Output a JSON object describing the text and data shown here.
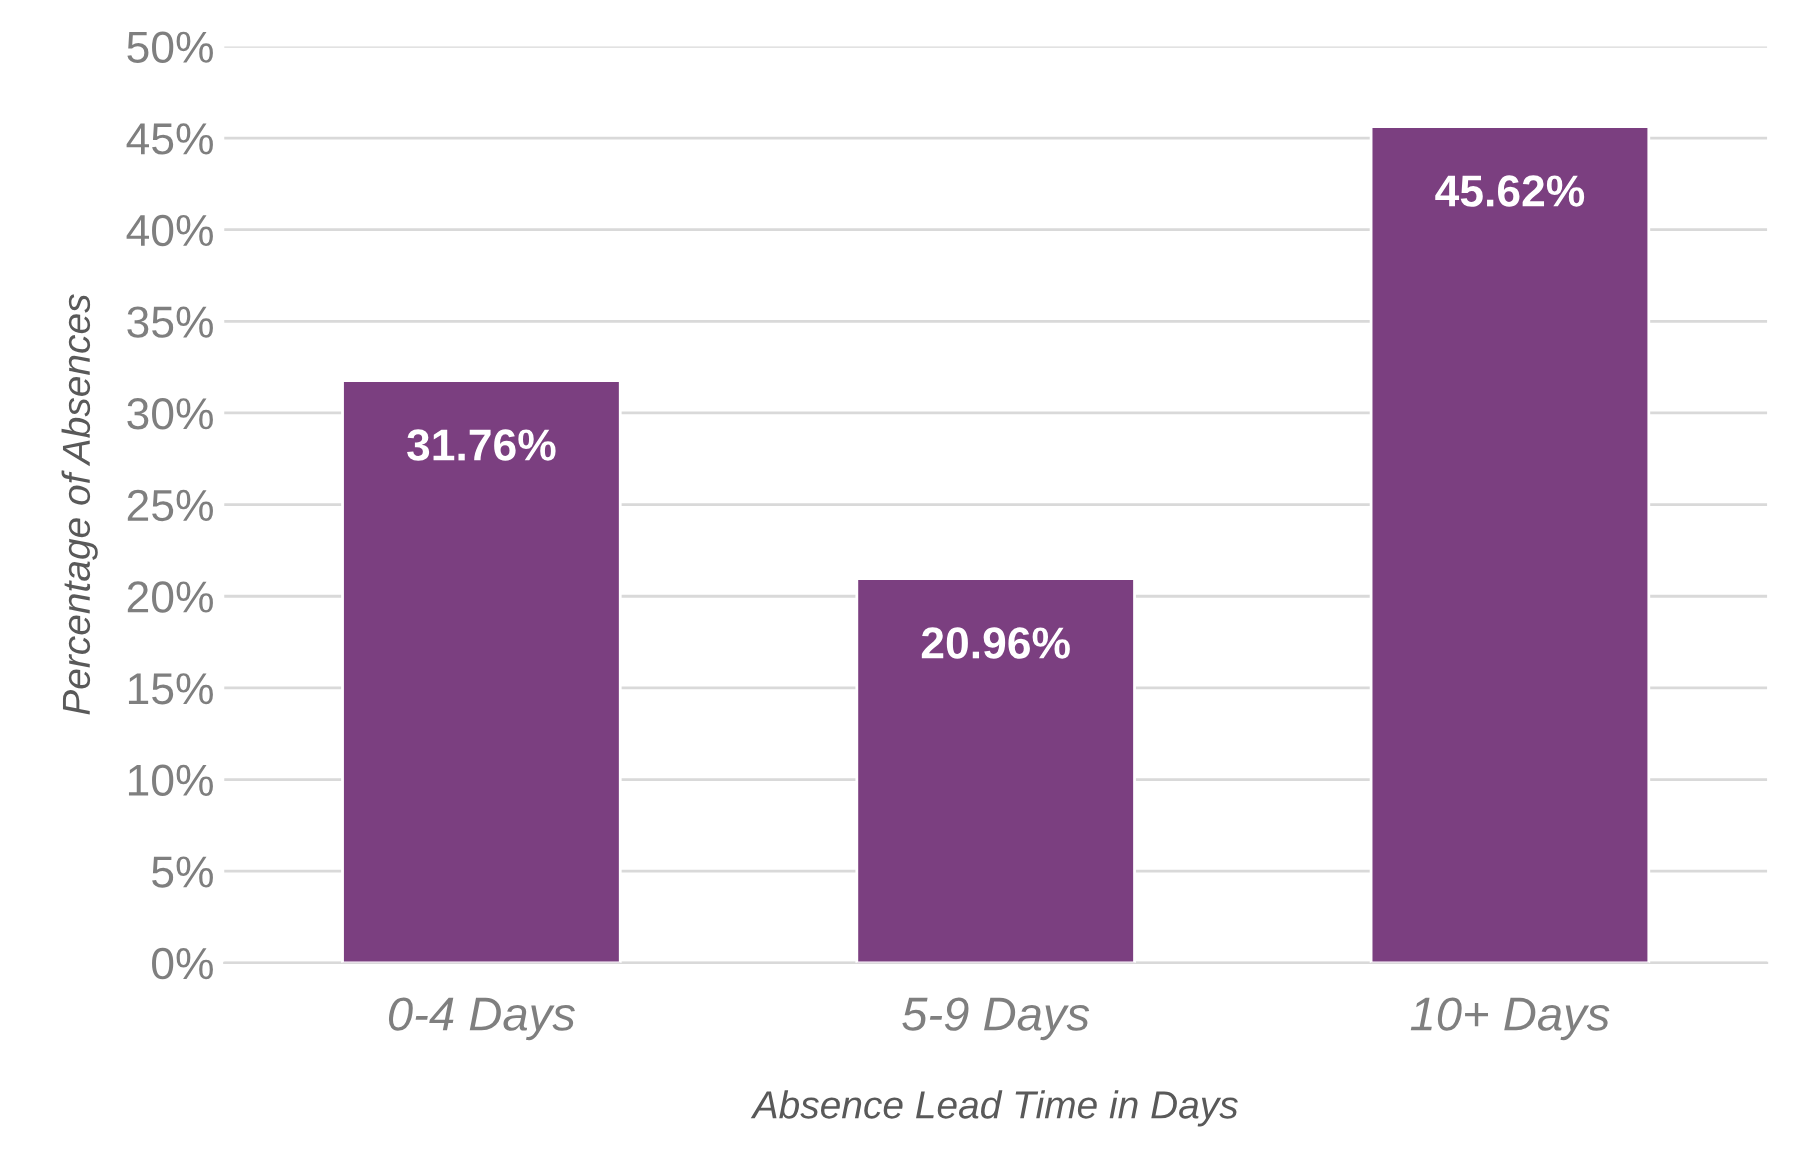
{
  "chart_data": {
    "type": "bar",
    "xlabel": "Absence Lead Time in Days",
    "ylabel": "Percentage of Absences",
    "categories": [
      "0-4 Days",
      "5-9 Days",
      "10+ Days"
    ],
    "values": [
      31.76,
      20.96,
      45.62
    ],
    "value_labels": [
      "31.76%",
      "20.96%",
      "45.62%"
    ],
    "color": "#7b3f80",
    "ylim": [
      0,
      50
    ],
    "yticks": [
      {
        "value": 0,
        "label": "0%"
      },
      {
        "value": 5,
        "label": "5%"
      },
      {
        "value": 10,
        "label": "10%"
      },
      {
        "value": 15,
        "label": "15%"
      },
      {
        "value": 20,
        "label": "20%"
      },
      {
        "value": 25,
        "label": "25%"
      },
      {
        "value": 30,
        "label": "30%"
      },
      {
        "value": 35,
        "label": "35%"
      },
      {
        "value": 40,
        "label": "40%"
      },
      {
        "value": 45,
        "label": "45%"
      },
      {
        "value": 50,
        "label": "50%"
      }
    ],
    "grid": "y",
    "legend": false
  }
}
